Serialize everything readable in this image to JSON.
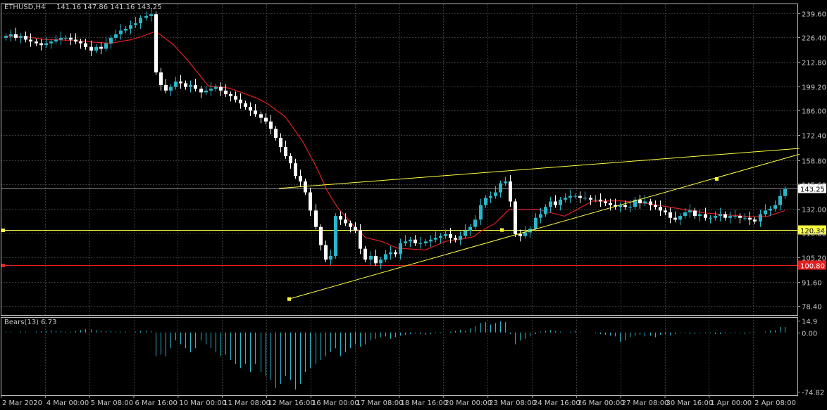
{
  "header": {
    "symbol_label": "ETHUSD,H4",
    "ohlc_label": "141.16 147.86 141.16 143.25"
  },
  "indicator": {
    "label": "Bears(13) 6.73"
  },
  "colors": {
    "background": "#000000",
    "grid": "#3a3a3a",
    "bull_candle": "#29b6c9",
    "bear_candle": "#ffffff",
    "moving_average": "#e02020",
    "trendline": "#ffff40",
    "support_line": "#ffff40",
    "resistance_line": "#e02020",
    "current_price_line": "#8a8a8a",
    "bears_histogram": "#29b6c9",
    "axis_text": "#c8c8c8"
  },
  "chart_data": [
    {
      "type": "candlestick",
      "title": "ETHUSD,H4",
      "x_tick_labels": [
        "2 Mar 2020",
        "4 Mar 00:00",
        "5 Mar 08:00",
        "6 Mar 16:00",
        "10 Mar 00:00",
        "11 Mar 08:00",
        "12 Mar 16:00",
        "16 Mar 00:00",
        "17 Mar 08:00",
        "18 Mar 16:00",
        "20 Mar 00:00",
        "23 Mar 08:00",
        "24 Mar 16:00",
        "26 Mar 00:00",
        "27 Mar 08:00",
        "30 Mar 16:00",
        "1 Apr 00:00",
        "2 Apr 08:00"
      ],
      "y_tick_labels": [
        "239.60",
        "226.40",
        "212.80",
        "199.20",
        "186.00",
        "172.40",
        "158.80",
        "145.60",
        "132.00",
        "118.80",
        "105.20",
        "91.60",
        "78.40"
      ],
      "ylim": [
        73.5,
        244.5
      ],
      "last_price": 143.25,
      "horizontal_levels": [
        {
          "value": 120.34,
          "label": "120.34",
          "color": "#ffff40"
        },
        {
          "value": 100.8,
          "label": "100.80",
          "color": "#e02020"
        }
      ],
      "close_series": [
        227,
        228,
        226,
        227,
        225,
        224,
        223,
        222,
        223,
        224,
        225,
        226,
        226,
        225,
        224,
        223,
        221,
        219,
        221,
        220,
        223,
        226,
        228,
        230,
        231,
        233,
        234,
        237,
        238,
        239,
        207,
        200,
        197,
        199,
        202,
        201,
        199,
        200,
        198,
        196,
        197,
        198,
        199,
        197,
        195,
        194,
        192,
        190,
        188,
        186,
        184,
        182,
        180,
        176,
        171,
        166,
        161,
        157,
        150,
        147,
        141,
        131,
        122,
        112,
        104,
        106,
        128,
        126,
        124,
        122,
        120,
        110,
        104,
        106,
        102,
        104,
        107,
        108,
        107,
        113,
        114,
        115,
        113,
        113,
        114,
        115,
        116,
        117,
        118,
        116,
        115,
        117,
        120,
        122,
        126,
        134,
        138,
        139,
        141,
        146,
        147,
        136,
        118,
        117,
        119,
        121,
        127,
        129,
        133,
        136,
        134,
        137,
        138,
        139,
        139,
        138,
        138,
        137,
        137,
        136,
        135,
        134,
        133,
        134,
        133,
        133,
        137,
        135,
        136,
        134,
        133,
        131,
        130,
        127,
        126,
        128,
        130,
        131,
        128,
        129,
        127,
        127,
        128,
        129,
        127,
        128,
        128,
        127,
        127,
        126,
        125,
        129,
        131,
        132,
        134,
        139,
        143
      ],
      "moving_average": {
        "name": "MA",
        "points": [
          [
            0,
            224
          ],
          [
            30,
            227
          ],
          [
            45,
            228
          ],
          [
            60,
            227
          ],
          [
            75,
            226
          ],
          [
            90,
            225
          ],
          [
            105,
            225
          ],
          [
            120,
            226
          ],
          [
            150,
            227
          ],
          [
            180,
            226
          ],
          [
            200,
            227
          ],
          [
            215,
            221
          ],
          [
            240,
            212
          ],
          [
            260,
            204
          ],
          [
            290,
            196
          ],
          [
            320,
            186
          ],
          [
            345,
            175
          ],
          [
            360,
            166
          ],
          [
            375,
            152
          ],
          [
            400,
            131
          ],
          [
            425,
            111
          ],
          [
            445,
            93
          ],
          [
            460,
            75
          ],
          [
            475,
            60
          ],
          [
            495,
            45
          ],
          [
            515,
            35
          ],
          [
            540,
            31
          ],
          [
            560,
            33
          ],
          [
            600,
            33
          ],
          [
            630,
            30
          ],
          [
            650,
            25
          ],
          [
            670,
            15
          ],
          [
            680,
            15
          ],
          [
            700,
            15
          ],
          [
            720,
            8
          ],
          [
            760,
            -5
          ],
          [
            800,
            -7
          ],
          [
            840,
            -5
          ],
          [
            880,
            -2
          ],
          [
            920,
            -3
          ],
          [
            960,
            -3
          ],
          [
            1000,
            -4
          ],
          [
            1040,
            -4
          ],
          [
            1070,
            -3
          ],
          [
            1090,
            -4
          ],
          [
            1115,
            -4
          ]
        ]
      },
      "trendlines": [
        {
          "from": [
            396,
            143.2
          ],
          "to": [
            1135,
            165.2
          ]
        },
        {
          "from": [
            410,
            82.3
          ],
          "to": [
            1135,
            162.0
          ]
        }
      ]
    },
    {
      "type": "bar",
      "title": "Bears(13)",
      "last_value": 6.73,
      "y_tick_labels": [
        "14.9",
        "0.00",
        "-74.82"
      ],
      "ylim": [
        -74.82,
        14.9
      ],
      "values": [
        1,
        1,
        0,
        1,
        1,
        0,
        1,
        2,
        2,
        3,
        2,
        2,
        1,
        1,
        2,
        3,
        4,
        4,
        3,
        2,
        2,
        2,
        1,
        1,
        1,
        0,
        1,
        2,
        2,
        2,
        -30,
        -28,
        -30,
        -20,
        -10,
        -15,
        -20,
        -25,
        -20,
        -10,
        -15,
        -20,
        -25,
        -30,
        -28,
        -35,
        -40,
        -45,
        -40,
        -50,
        -40,
        -50,
        -55,
        -60,
        -70,
        -65,
        -55,
        -60,
        -72,
        -65,
        -50,
        -45,
        -40,
        -35,
        -30,
        -25,
        -20,
        -30,
        -25,
        -20,
        -15,
        -18,
        -15,
        -10,
        -8,
        -6,
        -5,
        -8,
        -6,
        -4,
        -3,
        -2,
        -1,
        -2,
        -3,
        -2,
        -1,
        -1,
        0,
        1,
        2,
        3,
        2,
        5,
        8,
        12,
        13,
        10,
        12,
        14,
        13,
        -2,
        -15,
        -10,
        -8,
        -5,
        -2,
        1,
        2,
        3,
        2,
        1,
        0,
        1,
        2,
        1,
        0,
        0,
        -1,
        -2,
        -3,
        -4,
        -5,
        -12,
        -10,
        -6,
        -4,
        -3,
        -5,
        -4,
        -6,
        -3,
        -2,
        -4,
        -2,
        -1,
        -1,
        -2,
        -2,
        -1,
        -1,
        -1,
        -2,
        -2,
        -1,
        -1,
        -1,
        -1,
        -2,
        -1,
        -1,
        0,
        1,
        2,
        3,
        7,
        7
      ]
    }
  ]
}
